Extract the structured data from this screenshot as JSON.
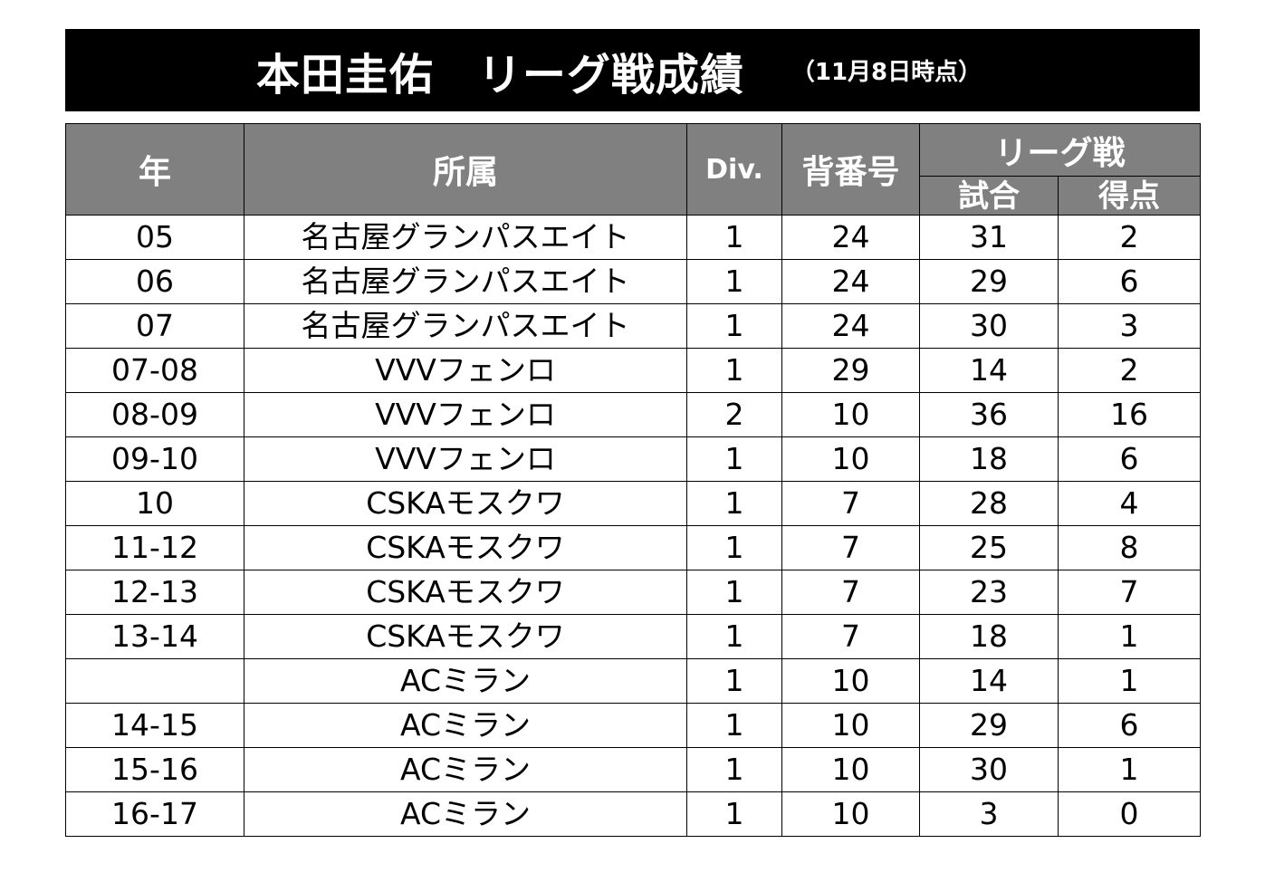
{
  "header": {
    "title": "本田圭佑　リーグ戦成績",
    "subtitle": "（11月8日時点）"
  },
  "table": {
    "col_year": "年",
    "col_club": "所属",
    "col_div": "Div.",
    "col_number": "背番号",
    "col_league": "リーグ戦",
    "col_apps": "試合",
    "col_goals": "得点",
    "rows": [
      {
        "year": "05",
        "club": "名古屋グランパスエイト",
        "div": "1",
        "number": "24",
        "apps": "31",
        "goals": "2"
      },
      {
        "year": "06",
        "club": "名古屋グランパスエイト",
        "div": "1",
        "number": "24",
        "apps": "29",
        "goals": "6"
      },
      {
        "year": "07",
        "club": "名古屋グランパスエイト",
        "div": "1",
        "number": "24",
        "apps": "30",
        "goals": "3"
      },
      {
        "year": "07-08",
        "club": "VVVフェンロ",
        "div": "1",
        "number": "29",
        "apps": "14",
        "goals": "2"
      },
      {
        "year": "08-09",
        "club": "VVVフェンロ",
        "div": "2",
        "number": "10",
        "apps": "36",
        "goals": "16"
      },
      {
        "year": "09-10",
        "club": "VVVフェンロ",
        "div": "1",
        "number": "10",
        "apps": "18",
        "goals": "6"
      },
      {
        "year": "10",
        "club": "CSKAモスクワ",
        "div": "1",
        "number": "7",
        "apps": "28",
        "goals": "4"
      },
      {
        "year": "11-12",
        "club": "CSKAモスクワ",
        "div": "1",
        "number": "7",
        "apps": "25",
        "goals": "8"
      },
      {
        "year": "12-13",
        "club": "CSKAモスクワ",
        "div": "1",
        "number": "7",
        "apps": "23",
        "goals": "7"
      },
      {
        "year": "13-14",
        "club": "CSKAモスクワ",
        "div": "1",
        "number": "7",
        "apps": "18",
        "goals": "1"
      },
      {
        "year": "",
        "club": "ACミラン",
        "div": "1",
        "number": "10",
        "apps": "14",
        "goals": "1"
      },
      {
        "year": "14-15",
        "club": "ACミラン",
        "div": "1",
        "number": "10",
        "apps": "29",
        "goals": "6"
      },
      {
        "year": "15-16",
        "club": "ACミラン",
        "div": "1",
        "number": "10",
        "apps": "30",
        "goals": "1"
      },
      {
        "year": "16-17",
        "club": "ACミラン",
        "div": "1",
        "number": "10",
        "apps": "3",
        "goals": "0"
      }
    ]
  }
}
